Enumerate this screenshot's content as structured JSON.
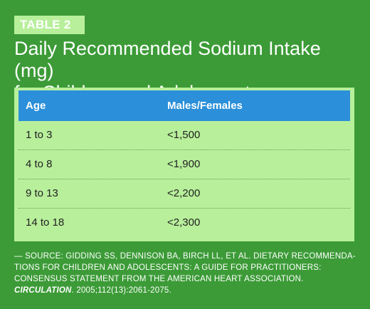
{
  "label": "TABLE 2",
  "title_line1": "Daily Recommended Sodium Intake (mg)",
  "title_line2": "for Children and Adolescents",
  "table": {
    "headers": [
      "Age",
      "Males/Females"
    ],
    "rows": [
      [
        "1 to 3",
        "<1,500"
      ],
      [
        "4 to 8",
        "<1,900"
      ],
      [
        "9 to 13",
        "<2,200"
      ],
      [
        "14 to 18",
        "<2,300"
      ]
    ]
  },
  "source": {
    "line1": "— SOURCE: GIDDING SS, DENNISON BA, BIRCH LL, ET AL. DIETARY RECOMMENDA-",
    "line2": "TIONS FOR CHILDREN AND ADOLESCENTS: A GUIDE FOR PRACTITIONERS:",
    "line3": "CONSENSUS STATEMENT FROM THE AMERICAN HEART ASSOCIATION.",
    "journal": "CIRCULATION",
    "citation": ". 2005;112(13):2061-2075."
  }
}
